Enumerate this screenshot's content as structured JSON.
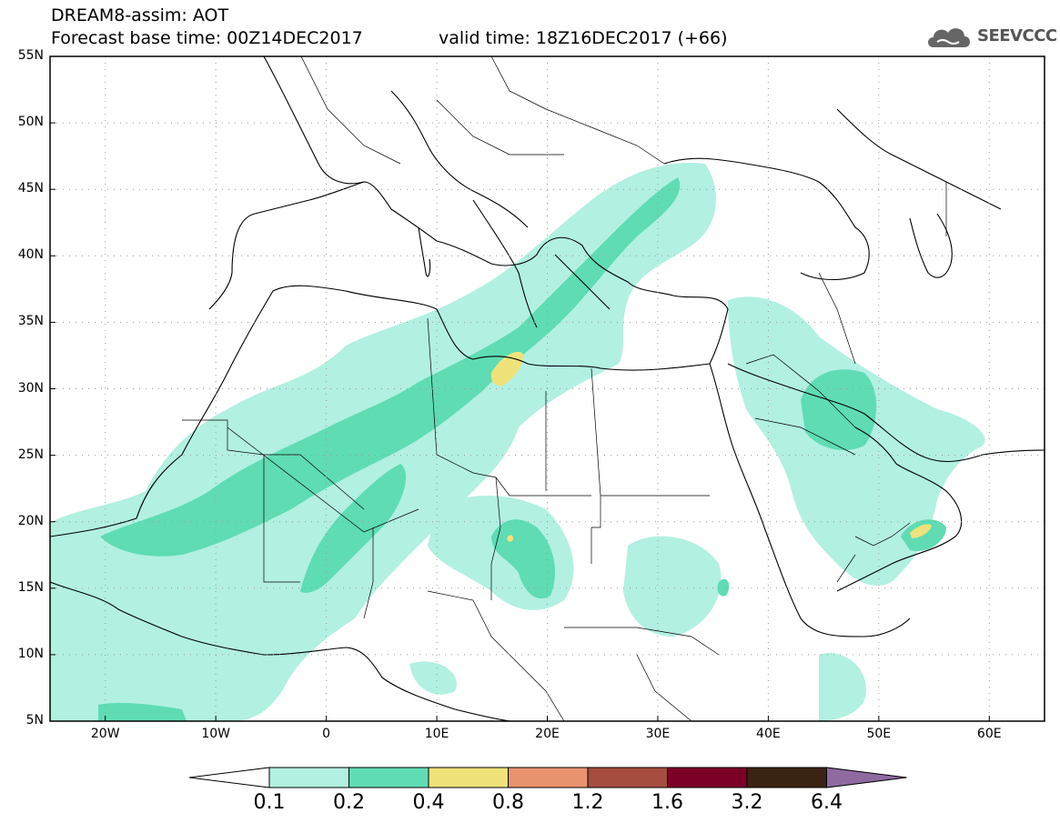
{
  "header": {
    "title_line1": "DREAM8-assim: AOT",
    "title_line2": "Forecast base time: 00Z14DEC2017",
    "valid_time": "valid time: 18Z16DEC2017 (+66)",
    "logo_text": "SEEVCCC",
    "logo_icon": "cloud-icon"
  },
  "map": {
    "lon_range": [
      -25,
      65
    ],
    "lat_range": [
      5,
      55
    ],
    "lat_labels": [
      "55N",
      "50N",
      "45N",
      "40N",
      "35N",
      "30N",
      "25N",
      "20N",
      "15N",
      "10N",
      "5N"
    ],
    "lon_labels": [
      "20W",
      "10W",
      "0",
      "10E",
      "20E",
      "30E",
      "40E",
      "50E",
      "60E"
    ],
    "grid": true,
    "colors": {
      "c0_1": "#b2f0e2",
      "c0_2": "#5fdcb4",
      "c0_4": "#efe27a",
      "c0_8": "#e9936e",
      "c1_2": "#a64d3f",
      "c1_6": "#7c0026",
      "c3_2": "#3b2314",
      "c6_4": "#8e6aa0"
    }
  },
  "colorbar": {
    "labels": [
      "0.1",
      "0.2",
      "0.4",
      "0.8",
      "1.2",
      "1.6",
      "3.2",
      "6.4"
    ],
    "colors": [
      "#b2f0e2",
      "#5fdcb4",
      "#efe27a",
      "#e9936e",
      "#a64d3f",
      "#7c0026",
      "#3b2314"
    ],
    "low_arrow_color": "#ffffff",
    "high_arrow_color": "#8e6aa0"
  }
}
